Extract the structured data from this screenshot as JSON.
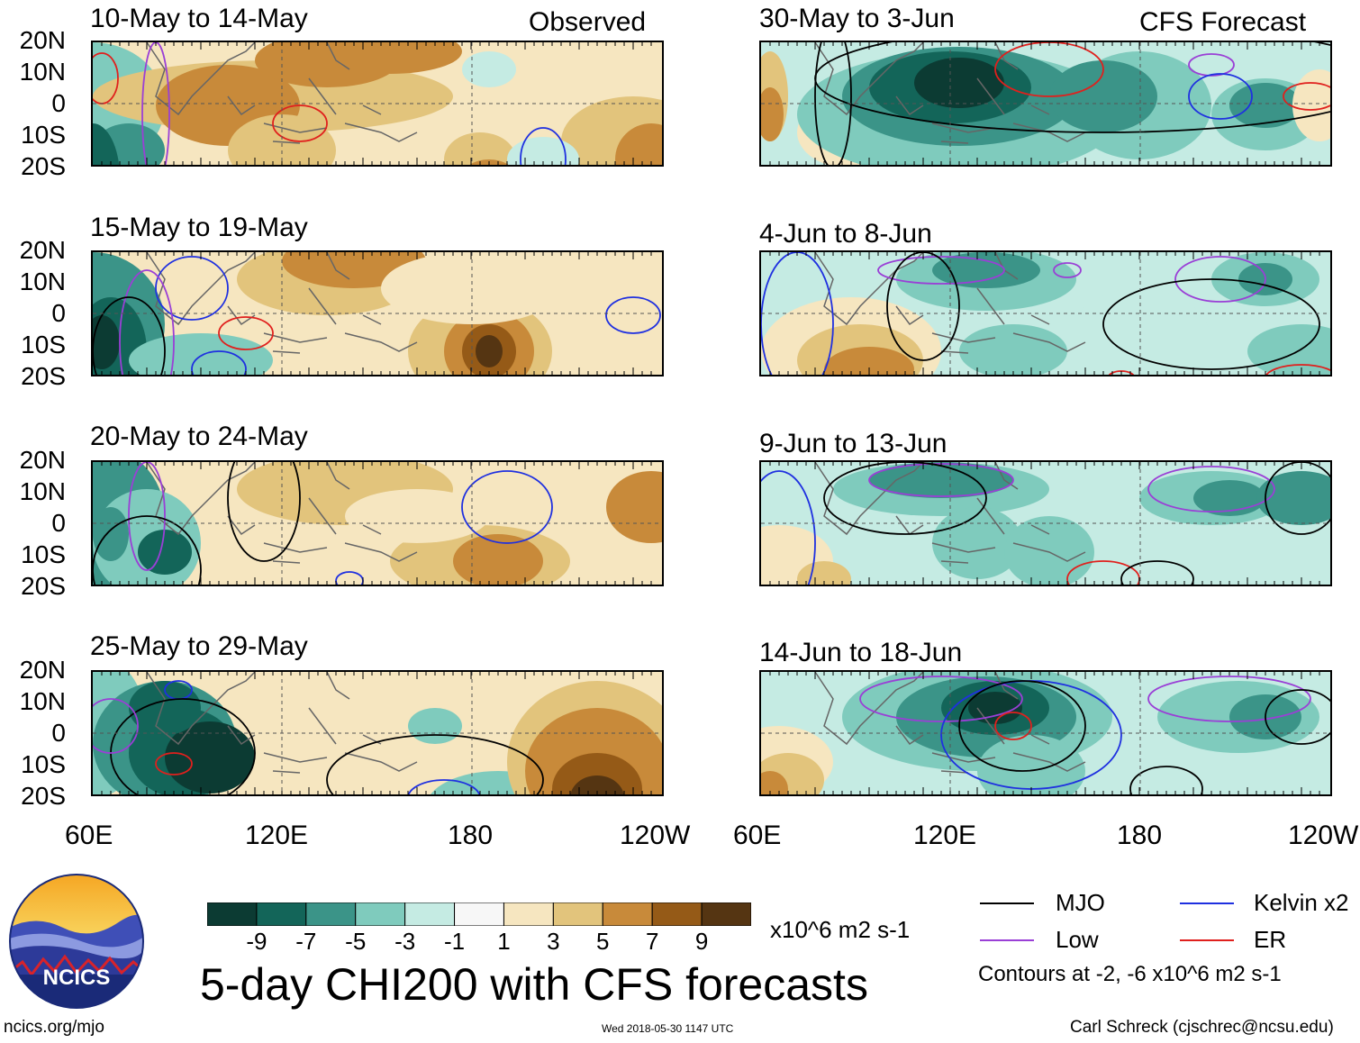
{
  "corner_labels": {
    "left": "Observed",
    "right": "CFS Forecast"
  },
  "latitude_labels": [
    "20N",
    "10N",
    "0",
    "10S",
    "20S"
  ],
  "longitude_labels": [
    "60E",
    "120E",
    "180",
    "120W"
  ],
  "panels": [
    {
      "title": "10-May to 14-May",
      "section": "observed"
    },
    {
      "title": "15-May to 19-May",
      "section": "observed"
    },
    {
      "title": "20-May to 24-May",
      "section": "observed"
    },
    {
      "title": "25-May to 29-May",
      "section": "observed"
    },
    {
      "title": "30-May to 3-Jun",
      "section": "forecast"
    },
    {
      "title": "4-Jun to 8-Jun",
      "section": "forecast"
    },
    {
      "title": "9-Jun to 13-Jun",
      "section": "forecast"
    },
    {
      "title": "14-Jun to 18-Jun",
      "section": "forecast"
    }
  ],
  "colorbar": {
    "colors": [
      "#0c3b33",
      "#136559",
      "#3b9488",
      "#7fcbbd",
      "#c5ebe3",
      "#f7f7f7",
      "#f6e6c0",
      "#e2c47c",
      "#c88a3a",
      "#955a17",
      "#553512"
    ],
    "labels": [
      "-9",
      "-7",
      "-5",
      "-3",
      "-1",
      "1",
      "3",
      "5",
      "7",
      "9"
    ],
    "units": "x10^6 m2 s-1"
  },
  "title": "5-day CHI200 with CFS forecasts",
  "logo": {
    "text": "NCICS"
  },
  "legend": [
    {
      "label": "MJO",
      "color": "#000000"
    },
    {
      "label": "Kelvin x2",
      "color": "#1f30e0"
    },
    {
      "label": "Low",
      "color": "#9a3fd6"
    },
    {
      "label": "ER",
      "color": "#e0201d"
    }
  ],
  "contour_note": "Contours at -2, -6 x10^6 m2 s-1",
  "footer": {
    "url": "ncics.org/mjo",
    "timestamp": "Wed 2018-05-30 1147 UTC",
    "author": "Carl Schreck (cjschrec@ncsu.edu)"
  }
}
